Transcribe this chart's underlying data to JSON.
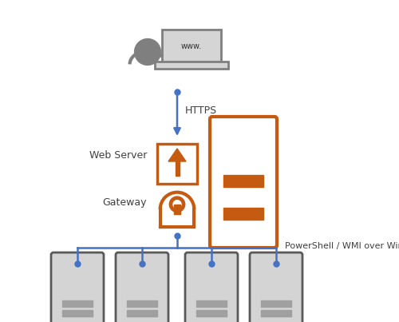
{
  "bg_color": "#ffffff",
  "arrow_color": "#4472C4",
  "orange_color": "#C55A11",
  "gray_color": "#7f7f7f",
  "light_gray": "#a0a0a0",
  "dark_gray": "#595959",
  "server_face": "#d4d4d4",
  "text_color": "#404040",
  "https_label": "HTTPS",
  "powershell_label": "PowerShell / WMI over WinRM",
  "webserver_label": "Web Server",
  "gateway_label": "Gateway",
  "www_label": "www.",
  "figsize": [
    5.0,
    4.03
  ],
  "dpi": 100,
  "xlim": [
    0,
    500
  ],
  "ylim": [
    0,
    403
  ]
}
